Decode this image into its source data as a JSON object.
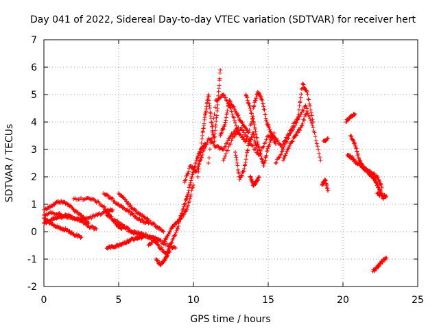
{
  "chart_data": {
    "type": "scatter",
    "title": "Day 041 of 2022, Sidereal Day-to-day VTEC variation (SDTVAR) for receiver hert",
    "xlabel": "GPS time / hours",
    "ylabel": "SDTVAR / TECUs",
    "xlim": [
      0,
      25
    ],
    "ylim": [
      -2,
      7
    ],
    "xticks": [
      0,
      5,
      10,
      15,
      20,
      25
    ],
    "yticks": [
      -2,
      -1,
      0,
      1,
      2,
      3,
      4,
      5,
      6,
      7
    ],
    "grid": true,
    "marker": "+",
    "series": [
      {
        "name": "SDTVAR",
        "color": "#ff0000",
        "segments": [
          {
            "x": [
              0.0,
              0.5,
              1.0,
              1.5,
              2.0,
              2.5,
              3.0
            ],
            "y": [
              0.8,
              0.95,
              1.1,
              1.05,
              0.8,
              0.6,
              0.3
            ]
          },
          {
            "x": [
              0.0,
              0.4,
              0.8,
              1.2,
              1.6,
              2.0,
              2.5
            ],
            "y": [
              0.5,
              0.3,
              0.2,
              0.1,
              0.05,
              -0.1,
              -0.2
            ]
          },
          {
            "x": [
              0.0,
              0.6,
              1.2,
              1.8,
              2.4,
              3.0,
              3.6,
              4.2,
              4.6
            ],
            "y": [
              0.6,
              0.7,
              0.6,
              0.5,
              0.45,
              0.5,
              0.6,
              0.75,
              0.8
            ]
          },
          {
            "x": [
              0.0,
              0.4,
              0.8,
              1.2,
              1.6,
              2.0,
              2.5,
              3.0,
              3.5
            ],
            "y": [
              0.3,
              0.4,
              0.5,
              0.55,
              0.6,
              0.5,
              0.4,
              0.2,
              0.1
            ]
          },
          {
            "x": [
              2.0,
              2.8,
              3.4,
              4.0,
              4.4,
              4.8,
              5.2
            ],
            "y": [
              1.2,
              1.2,
              1.15,
              0.9,
              0.6,
              0.3,
              0.1
            ]
          },
          {
            "x": [
              4.0,
              4.5,
              5.0,
              5.5,
              6.0,
              6.5,
              7.0
            ],
            "y": [
              1.4,
              1.2,
              1.0,
              0.8,
              0.6,
              0.4,
              0.3
            ]
          },
          {
            "x": [
              5.0,
              5.5,
              6.0,
              6.5,
              7.0,
              7.5,
              8.0
            ],
            "y": [
              1.4,
              1.1,
              0.8,
              0.6,
              0.4,
              0.2,
              0.0
            ]
          },
          {
            "x": [
              4.2,
              4.8,
              5.4,
              6.0,
              6.6,
              7.2,
              7.8
            ],
            "y": [
              0.6,
              0.4,
              0.2,
              0.0,
              -0.1,
              -0.2,
              -0.3
            ]
          },
          {
            "x": [
              4.8,
              5.5,
              6.2,
              6.9,
              7.6,
              8.3,
              8.8
            ],
            "y": [
              0.3,
              0.1,
              -0.1,
              -0.2,
              -0.3,
              -0.5,
              -0.6
            ]
          },
          {
            "x": [
              4.2,
              4.6,
              5.0,
              5.4,
              5.8,
              6.2,
              6.6
            ],
            "y": [
              -0.6,
              -0.55,
              -0.5,
              -0.4,
              -0.3,
              -0.25,
              -0.2
            ]
          },
          {
            "x": [
              7.0,
              7.4,
              7.8,
              8.2,
              8.6,
              9.0
            ],
            "y": [
              -0.5,
              -0.3,
              -0.6,
              -0.8,
              -0.3,
              0.2
            ]
          },
          {
            "x": [
              7.5,
              7.8,
              8.0,
              8.2,
              8.4
            ],
            "y": [
              -1.0,
              -1.2,
              -1.1,
              -0.9,
              -0.7
            ]
          },
          {
            "x": [
              8.0,
              8.4,
              8.8,
              9.2,
              9.6,
              10.0
            ],
            "y": [
              -0.4,
              0.0,
              0.3,
              0.5,
              0.9,
              1.7
            ]
          },
          {
            "x": [
              9.0,
              9.3,
              9.6,
              9.9,
              10.2,
              10.5,
              10.8
            ],
            "y": [
              0.3,
              0.8,
              1.3,
              2.0,
              2.6,
              3.0,
              3.2
            ]
          },
          {
            "x": [
              9.4,
              9.8,
              10.2,
              10.6,
              11.0,
              11.5,
              12.0,
              12.5,
              13.0
            ],
            "y": [
              1.8,
              2.4,
              2.2,
              2.8,
              3.4,
              3.1,
              3.0,
              3.5,
              3.8
            ]
          },
          {
            "x": [
              10.3,
              10.6,
              10.8,
              11.0,
              11.2,
              11.4,
              11.6,
              11.8
            ],
            "y": [
              2.0,
              3.5,
              4.3,
              5.0,
              4.0,
              3.3,
              4.5,
              5.9
            ]
          },
          {
            "x": [
              11.0,
              11.5,
              12.0,
              12.5,
              13.0,
              13.5,
              14.0
            ],
            "y": [
              2.5,
              4.8,
              5.0,
              4.5,
              3.6,
              3.3,
              4.2
            ]
          },
          {
            "x": [
              11.8,
              12.1,
              12.4,
              12.8,
              13.2,
              13.6
            ],
            "y": [
              3.5,
              3.9,
              4.8,
              4.4,
              4.0,
              3.7
            ]
          },
          {
            "x": [
              12.0,
              12.6,
              13.2,
              13.8,
              14.4,
              15.0,
              15.5,
              16.0
            ],
            "y": [
              2.6,
              3.4,
              3.8,
              3.2,
              2.8,
              3.5,
              3.4,
              3.0
            ]
          },
          {
            "x": [
              13.5,
              13.8,
              14.1,
              14.4,
              14.7,
              15.0,
              15.4
            ],
            "y": [
              5.0,
              4.5,
              3.8,
              3.0,
              2.4,
              3.1,
              3.6
            ]
          },
          {
            "x": [
              12.8,
              13.1,
              13.4,
              13.7,
              14.0,
              14.3
            ],
            "y": [
              2.9,
              1.9,
              2.3,
              3.2,
              3.6,
              2.9
            ]
          },
          {
            "x": [
              13.8,
              14.0,
              14.2,
              14.4
            ],
            "y": [
              2.0,
              1.7,
              1.8,
              2.0
            ]
          },
          {
            "x": [
              14.0,
              14.3,
              14.6,
              14.9,
              15.2,
              15.5
            ],
            "y": [
              4.5,
              5.1,
              4.8,
              4.0,
              3.6,
              3.2
            ]
          },
          {
            "x": [
              15.5,
              16.0,
              16.5,
              17.0,
              17.5,
              18.0,
              18.5
            ],
            "y": [
              2.5,
              3.0,
              3.6,
              4.1,
              4.6,
              3.8,
              2.6
            ]
          },
          {
            "x": [
              16.0,
              16.5,
              17.0,
              17.3,
              17.6,
              18.0
            ],
            "y": [
              3.2,
              3.7,
              4.2,
              5.4,
              5.1,
              4.0
            ]
          },
          {
            "x": [
              16.0,
              16.4,
              16.8,
              17.2,
              17.6
            ],
            "y": [
              2.6,
              3.1,
              3.5,
              3.8,
              4.4
            ]
          },
          {
            "x": [
              18.6,
              18.8,
              19.0
            ],
            "y": [
              1.7,
              1.9,
              1.5
            ]
          },
          {
            "x": [
              18.7,
              19.0
            ],
            "y": [
              3.3,
              3.4
            ]
          },
          {
            "x": [
              20.2,
              20.5,
              20.8
            ],
            "y": [
              4.0,
              4.2,
              4.3
            ]
          },
          {
            "x": [
              20.3,
              20.6,
              20.9,
              21.2,
              21.5,
              21.8,
              22.1,
              22.4,
              22.7
            ],
            "y": [
              2.8,
              2.7,
              2.5,
              2.4,
              2.3,
              2.1,
              1.9,
              1.6,
              1.2
            ]
          },
          {
            "x": [
              20.5,
              20.8,
              21.1,
              21.4,
              21.7,
              22.0,
              22.3,
              22.6
            ],
            "y": [
              3.5,
              3.2,
              2.6,
              2.3,
              2.2,
              2.1,
              2.0,
              1.6
            ]
          },
          {
            "x": [
              22.0,
              22.3,
              22.6,
              22.9
            ],
            "y": [
              -1.45,
              -1.3,
              -1.1,
              -0.95
            ]
          },
          {
            "x": [
              22.3,
              22.6,
              22.9
            ],
            "y": [
              1.4,
              1.3,
              1.3
            ]
          }
        ]
      }
    ]
  }
}
